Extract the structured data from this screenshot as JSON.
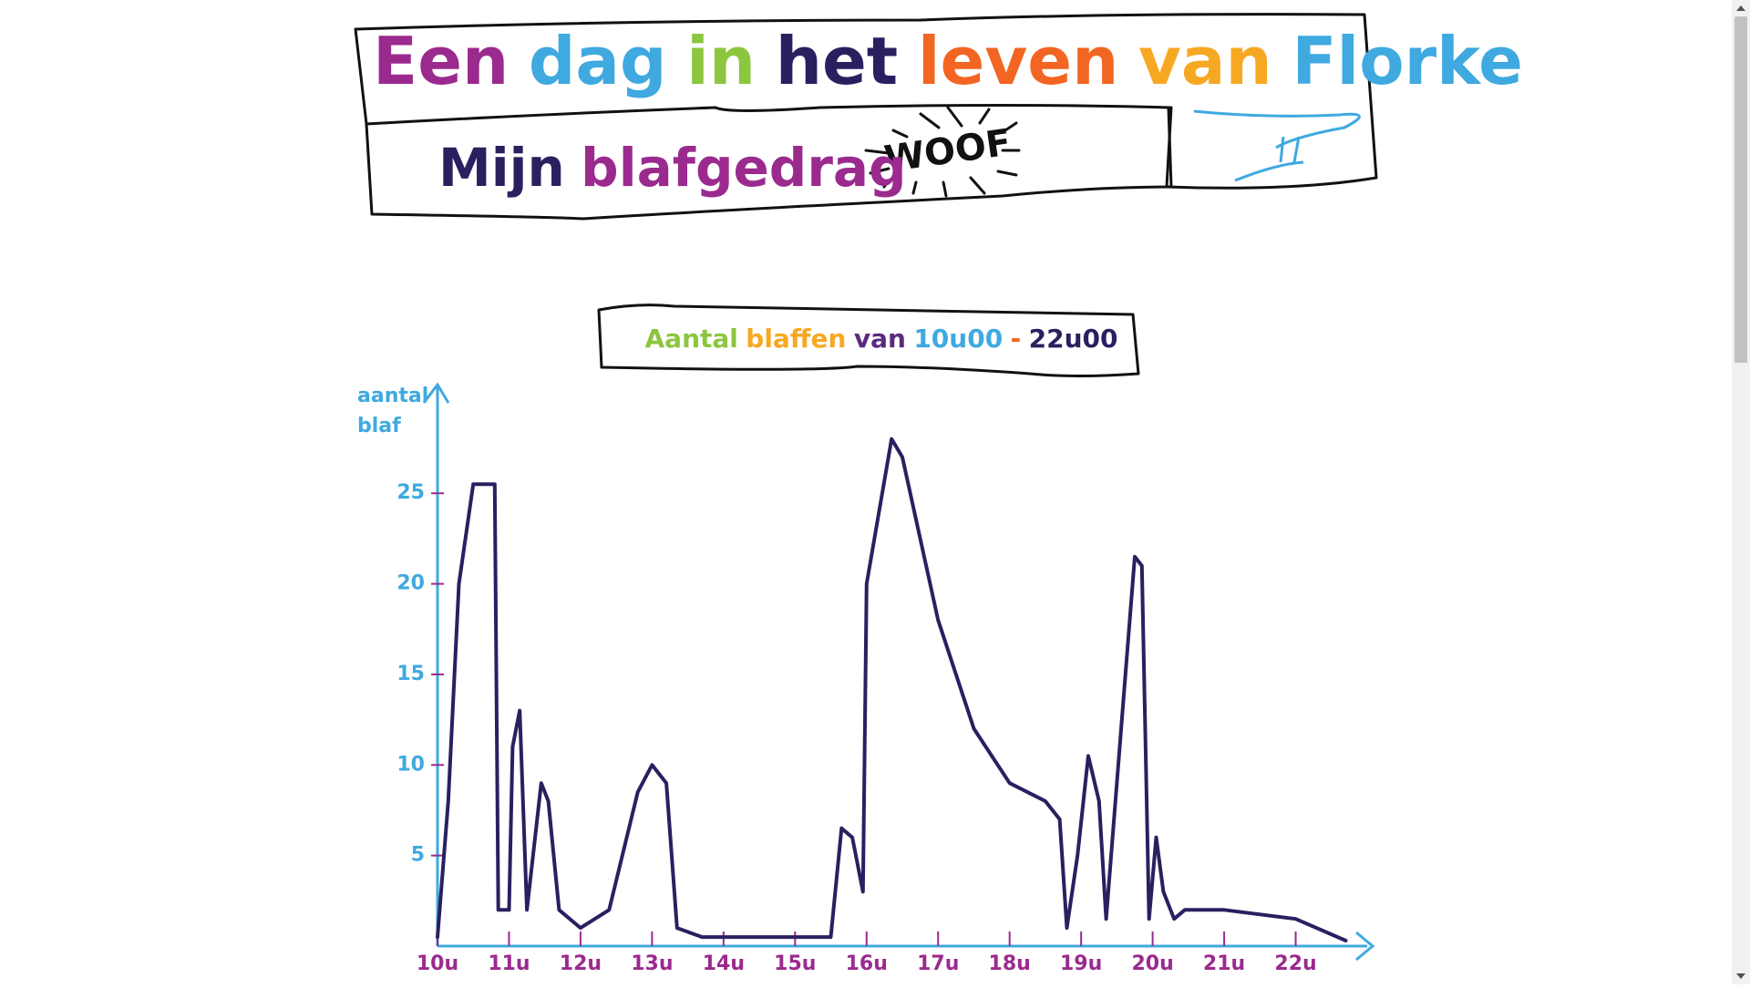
{
  "header": {
    "title": [
      "Een",
      "dag",
      "in",
      "het",
      "leven",
      "van",
      "Florke"
    ],
    "title_colors": [
      "#9b2a8e",
      "#3fa9e0",
      "#8cc63f",
      "#2a2060",
      "#f26522",
      "#f7a823",
      "#3fa9e0"
    ],
    "subtitle": [
      "Mijn",
      "blafgedrag"
    ],
    "subtitle_colors": [
      "#2a2060",
      "#9b2a8e"
    ],
    "sticker": "WOOF"
  },
  "chart_data": {
    "type": "line",
    "title": [
      "Aantal",
      "blaffen",
      "van",
      "10u00",
      "-",
      "22u00"
    ],
    "title_colors": [
      "#8cc63f",
      "#f7a823",
      "#5b2a7e",
      "#3fa9e0",
      "#f26522",
      "#2a2060"
    ],
    "y_label": [
      "aantal",
      "blaf"
    ],
    "x": [
      10.0,
      10.15,
      10.3,
      10.5,
      10.8,
      10.85,
      11.0,
      11.05,
      11.15,
      11.25,
      11.45,
      11.55,
      11.7,
      12.0,
      12.4,
      12.8,
      13.0,
      13.2,
      13.35,
      13.7,
      14.5,
      15.0,
      15.5,
      15.65,
      15.8,
      15.95,
      16.0,
      16.35,
      16.5,
      17.0,
      17.5,
      18.0,
      18.5,
      18.7,
      18.8,
      18.95,
      19.1,
      19.25,
      19.35,
      19.6,
      19.75,
      19.85,
      19.95,
      20.05,
      20.15,
      20.3,
      20.45,
      21.0,
      22.0,
      22.7
    ],
    "values": [
      0.5,
      8,
      20,
      25.5,
      25.5,
      2,
      2,
      11,
      13,
      2,
      9,
      8,
      2,
      1,
      2,
      8.5,
      10,
      9,
      1,
      0.5,
      0.5,
      0.5,
      0.5,
      6.5,
      6,
      3,
      20,
      28,
      27,
      18,
      12,
      9,
      8,
      7,
      1,
      5,
      10.5,
      8,
      1.5,
      14,
      21.5,
      21,
      1.5,
      6,
      3,
      1.5,
      2,
      2,
      1.5,
      0.3
    ],
    "color": "#2a2060",
    "xlim": [
      10,
      23
    ],
    "xticks": [
      {
        "value": 10,
        "label": "10u"
      },
      {
        "value": 11,
        "label": "11u"
      },
      {
        "value": 12,
        "label": "12u"
      },
      {
        "value": 13,
        "label": "13u"
      },
      {
        "value": 14,
        "label": "14u"
      },
      {
        "value": 15,
        "label": "15u"
      },
      {
        "value": 16,
        "label": "16u"
      },
      {
        "value": 17,
        "label": "17u"
      },
      {
        "value": 18,
        "label": "18u"
      },
      {
        "value": 19,
        "label": "19u"
      },
      {
        "value": 20,
        "label": "20u"
      },
      {
        "value": 21,
        "label": "21u"
      },
      {
        "value": 22,
        "label": "22u"
      }
    ],
    "ylim": [
      0,
      31
    ],
    "yticks": [
      5,
      10,
      15,
      20,
      25
    ]
  }
}
